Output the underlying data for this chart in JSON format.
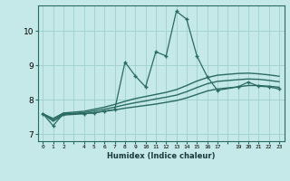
{
  "xlabel": "Humidex (Indice chaleur)",
  "bg_color": "#c5e8e8",
  "line_color": "#2a6b60",
  "grid_color": "#9fcece",
  "x_zigzag": [
    0,
    1,
    2,
    4,
    5,
    6,
    7,
    8,
    9,
    10,
    11,
    12,
    13,
    14,
    15,
    16,
    17,
    19,
    20,
    21,
    22,
    23
  ],
  "y_zigzag": [
    7.6,
    7.25,
    7.6,
    7.6,
    7.62,
    7.68,
    7.72,
    9.1,
    8.7,
    8.38,
    9.4,
    9.28,
    10.58,
    10.35,
    9.28,
    8.68,
    8.28,
    8.38,
    8.52,
    8.4,
    8.38,
    8.32
  ],
  "x_smooth": [
    0,
    1,
    2,
    4,
    5,
    6,
    7,
    8,
    9,
    10,
    11,
    12,
    13,
    14,
    15,
    16,
    17,
    19,
    20,
    21,
    22,
    23
  ],
  "y_smooth1": [
    7.6,
    7.38,
    7.56,
    7.6,
    7.63,
    7.67,
    7.71,
    7.76,
    7.8,
    7.84,
    7.88,
    7.93,
    7.98,
    8.06,
    8.16,
    8.26,
    8.32,
    8.38,
    8.42,
    8.42,
    8.4,
    8.37
  ],
  "y_smooth2": [
    7.6,
    7.42,
    7.59,
    7.63,
    7.68,
    7.73,
    7.79,
    7.86,
    7.92,
    7.97,
    8.03,
    8.08,
    8.14,
    8.24,
    8.36,
    8.47,
    8.54,
    8.59,
    8.61,
    8.6,
    8.57,
    8.53
  ],
  "y_smooth3": [
    7.6,
    7.46,
    7.62,
    7.67,
    7.73,
    7.79,
    7.87,
    7.96,
    8.04,
    8.1,
    8.16,
    8.22,
    8.3,
    8.42,
    8.55,
    8.65,
    8.72,
    8.77,
    8.78,
    8.76,
    8.73,
    8.69
  ],
  "xlim": [
    -0.5,
    23.5
  ],
  "ylim": [
    6.8,
    10.75
  ],
  "yticks": [
    7,
    8,
    9,
    10
  ],
  "xtick_positions": [
    0,
    1,
    2,
    4,
    5,
    6,
    7,
    8,
    9,
    10,
    11,
    12,
    13,
    14,
    15,
    16,
    17,
    19,
    20,
    21,
    22,
    23
  ],
  "xtick_labels": [
    "0",
    "1",
    "2",
    "4",
    "5",
    "6",
    "7",
    "8",
    "9",
    "10",
    "11",
    "12",
    "13",
    "14",
    "15",
    "16",
    "17",
    "19",
    "20",
    "21",
    "22",
    "23"
  ]
}
